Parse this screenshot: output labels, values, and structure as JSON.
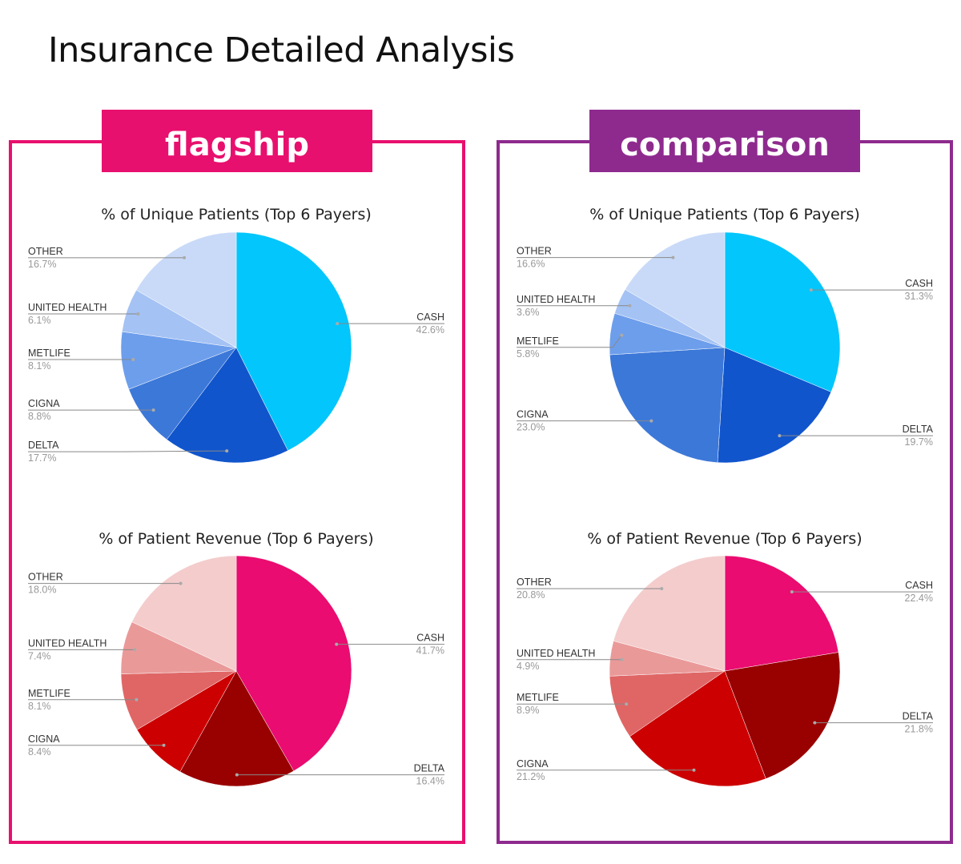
{
  "title": "Insurance Detailed Analysis",
  "panels": [
    {
      "label": "flagship",
      "color": "#e8106e"
    },
    {
      "label": "comparison",
      "color": "#8e2a8e"
    }
  ],
  "palettes": {
    "blue": [
      "#03c6fc",
      "#1155cc",
      "#3c78d8",
      "#6d9eeb",
      "#a4c2f4",
      "#c9daf8"
    ],
    "red": [
      "#ea0c70",
      "#990000",
      "#cc0000",
      "#e06666",
      "#ea9999",
      "#f4cccc"
    ]
  },
  "chart_data": [
    {
      "type": "pie",
      "panel": "flagship",
      "title": "% of Unique Patients (Top 6 Payers)",
      "palette": "blue",
      "categories": [
        "CASH",
        "DELTA",
        "CIGNA",
        "METLIFE",
        "UNITED HEALTH",
        "OTHER"
      ],
      "values": [
        42.6,
        17.7,
        8.8,
        8.1,
        6.1,
        16.7
      ],
      "labels": [
        "42.6%",
        "17.7%",
        "8.8%",
        "8.1%",
        "6.1%",
        "16.7%"
      ]
    },
    {
      "type": "pie",
      "panel": "flagship",
      "title": "% of Patient Revenue (Top 6 Payers)",
      "palette": "red",
      "categories": [
        "CASH",
        "DELTA",
        "CIGNA",
        "METLIFE",
        "UNITED HEALTH",
        "OTHER"
      ],
      "values": [
        41.7,
        16.4,
        8.4,
        8.1,
        7.4,
        18.0
      ],
      "labels": [
        "41.7%",
        "16.4%",
        "8.4%",
        "8.1%",
        "7.4%",
        "18.0%"
      ]
    },
    {
      "type": "pie",
      "panel": "comparison",
      "title": "% of Unique Patients (Top 6 Payers)",
      "palette": "blue",
      "categories": [
        "CASH",
        "DELTA",
        "CIGNA",
        "METLIFE",
        "UNITED HEALTH",
        "OTHER"
      ],
      "values": [
        31.3,
        19.7,
        23.0,
        5.8,
        3.6,
        16.6
      ],
      "labels": [
        "31.3%",
        "19.7%",
        "23.0%",
        "5.8%",
        "3.6%",
        "16.6%"
      ]
    },
    {
      "type": "pie",
      "panel": "comparison",
      "title": "% of Patient Revenue (Top 6 Payers)",
      "palette": "red",
      "categories": [
        "CASH",
        "DELTA",
        "CIGNA",
        "METLIFE",
        "UNITED HEALTH",
        "OTHER"
      ],
      "values": [
        22.4,
        21.8,
        21.2,
        8.9,
        4.9,
        20.8
      ],
      "labels": [
        "22.4%",
        "21.8%",
        "21.2%",
        "8.9%",
        "4.9%",
        "20.8%"
      ]
    }
  ]
}
